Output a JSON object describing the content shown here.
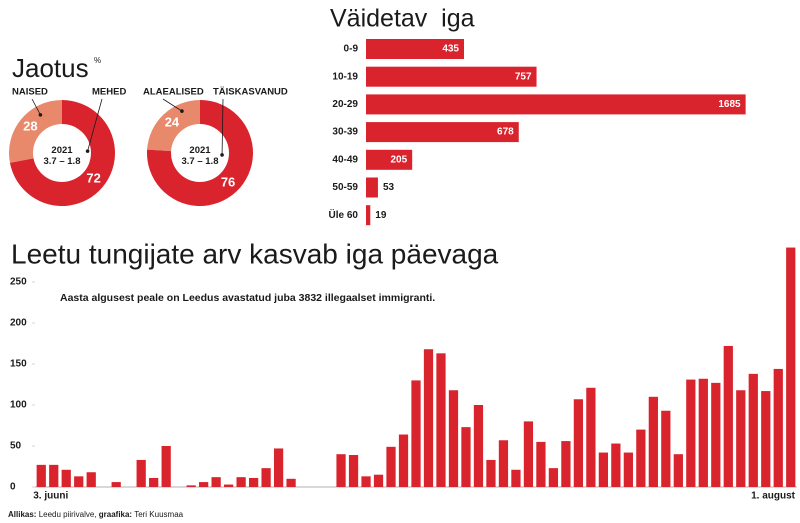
{
  "chart_data": [
    {
      "type": "donut",
      "title": "Jaotus",
      "subtitle": "%",
      "categories": [
        "NAISED",
        "MEHED"
      ],
      "values": [
        28,
        72
      ],
      "colors": [
        "#e8896b",
        "#d9232d"
      ],
      "center_text": [
        "2021",
        "3.7 – 1.8"
      ]
    },
    {
      "type": "donut",
      "categories": [
        "ALAEALISED",
        "TÄISKASVANUD"
      ],
      "values": [
        24,
        76
      ],
      "colors": [
        "#e8896b",
        "#d9232d"
      ],
      "center_text": [
        "2021",
        "3.7 – 1.8"
      ]
    },
    {
      "type": "hbar",
      "title": "Väidetav  iga",
      "categories": [
        "0-9",
        "10-19",
        "20-29",
        "30-39",
        "40-49",
        "50-59",
        "Üle 60"
      ],
      "values": [
        435,
        757,
        1685,
        678,
        205,
        53,
        19
      ],
      "color": "#d9232d",
      "xlim": [
        0,
        1700
      ]
    },
    {
      "type": "bar",
      "title": "Leetu tungijate arv kasvab iga päevaga",
      "annotation": "Aasta algusest peale on Leedus avastatud juba 3832 illegaalset immigranti.",
      "categories": [
        "3. juuni",
        null,
        null,
        null,
        null,
        null,
        null,
        null,
        null,
        null,
        null,
        null,
        null,
        null,
        null,
        null,
        null,
        null,
        null,
        null,
        null,
        null,
        null,
        null,
        null,
        null,
        null,
        null,
        null,
        null,
        null,
        null,
        null,
        null,
        null,
        null,
        null,
        null,
        null,
        null,
        null,
        null,
        null,
        null,
        null,
        null,
        null,
        null,
        null,
        null,
        null,
        null,
        null,
        null,
        null,
        null,
        null,
        null,
        null,
        null,
        "1. august"
      ],
      "values": [
        27,
        27,
        21,
        13,
        18,
        0,
        6,
        0,
        33,
        11,
        50,
        0,
        2,
        6,
        12,
        3,
        12,
        11,
        23,
        47,
        10,
        0,
        0,
        0,
        40,
        39,
        13,
        15,
        49,
        64,
        130,
        168,
        163,
        118,
        73,
        100,
        33,
        57,
        21,
        80,
        55,
        23,
        56,
        107,
        121,
        42,
        53,
        42,
        70,
        110,
        93,
        40,
        131,
        132,
        127,
        172,
        118,
        138,
        117,
        144,
        292
      ],
      "color": "#d9232d",
      "ylim": [
        0,
        300
      ],
      "yticks": [
        0,
        50,
        100,
        150,
        200,
        250
      ]
    }
  ],
  "footer": {
    "source_label": "Allikas:",
    "source": "Leedu piirivalve,",
    "credit_label": "graafika:",
    "credit": "Teri Kuusmaa"
  }
}
